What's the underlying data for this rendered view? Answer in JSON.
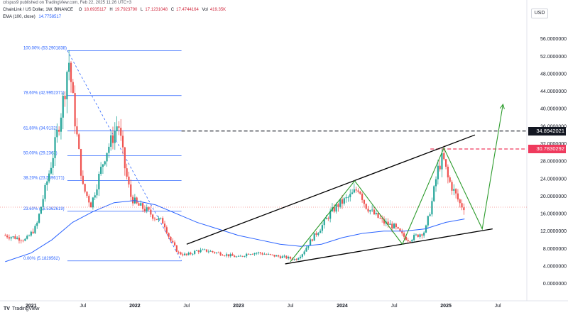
{
  "header": {
    "published": "crispus9 published on TradingView.com, Feb 22, 2025 11:26 UTC+3",
    "symbol": "ChainLink / US Dollar, 1W, BINANCE",
    "ohlc": [
      {
        "label": "O",
        "value": "18.6935117"
      },
      {
        "label": "H",
        "value": "19.7923790"
      },
      {
        "label": "L",
        "value": "17.1231048"
      },
      {
        "label": "C",
        "value": "17.4744164"
      },
      {
        "label": "Vol",
        "value": "419.35K"
      }
    ],
    "ema_label": "EMA (100, close)",
    "ema_value": "14.7758517"
  },
  "currency_button": "USD",
  "price_tags": {
    "resistance": "34.8942021",
    "current_high": "30.7830292"
  },
  "brand": {
    "logo": "TV",
    "name": "TradingView"
  },
  "colors": {
    "up": "#26a69a",
    "down": "#ef5350",
    "ema": "#2962ff",
    "fib": "#2962ff",
    "projection": "#2e9c2e",
    "channel": "#000000",
    "tag_dark": "#131722",
    "tag_red": "#ef3a5d"
  },
  "chart_data": {
    "type": "candlestick",
    "title": "ChainLink / US Dollar, 1W, BINANCE",
    "xlabel": "",
    "ylabel": "",
    "grid": false,
    "ylim": [
      -2,
      60
    ],
    "x_ticks": [
      {
        "label": "2021",
        "bold": true
      },
      {
        "label": "Jul",
        "bold": false
      },
      {
        "label": "2022",
        "bold": true
      },
      {
        "label": "Jul",
        "bold": false
      },
      {
        "label": "2023",
        "bold": true
      },
      {
        "label": "Jul",
        "bold": false
      },
      {
        "label": "2024",
        "bold": true
      },
      {
        "label": "Jul",
        "bold": false
      },
      {
        "label": "2025",
        "bold": true
      },
      {
        "label": "Jul",
        "bold": false
      }
    ],
    "y_ticks": [
      "56.0000000",
      "52.0000000",
      "48.0000000",
      "44.0000000",
      "40.0000000",
      "36.0000000",
      "32.0000000",
      "28.0000000",
      "24.0000000",
      "20.0000000",
      "16.0000000",
      "12.0000000",
      "8.0000000",
      "4.0000000",
      "0.0000000"
    ],
    "y_tick_values": [
      56,
      52,
      48,
      44,
      40,
      36,
      32,
      28,
      24,
      20,
      16,
      12,
      8,
      4,
      0
    ],
    "price_path": [
      [
        2020.75,
        11
      ],
      [
        2020.95,
        10
      ],
      [
        2021.05,
        13
      ],
      [
        2021.12,
        20
      ],
      [
        2021.2,
        28
      ],
      [
        2021.28,
        38
      ],
      [
        2021.33,
        45
      ],
      [
        2021.36,
        52
      ],
      [
        2021.42,
        38
      ],
      [
        2021.5,
        22
      ],
      [
        2021.58,
        18
      ],
      [
        2021.66,
        25
      ],
      [
        2021.72,
        30
      ],
      [
        2021.78,
        33
      ],
      [
        2021.84,
        37
      ],
      [
        2021.9,
        27
      ],
      [
        2021.96,
        20
      ],
      [
        2022.02,
        18
      ],
      [
        2022.1,
        17
      ],
      [
        2022.2,
        15
      ],
      [
        2022.28,
        14
      ],
      [
        2022.34,
        10
      ],
      [
        2022.42,
        7
      ],
      [
        2022.5,
        6.5
      ],
      [
        2022.6,
        7.5
      ],
      [
        2022.7,
        7.5
      ],
      [
        2022.8,
        7
      ],
      [
        2022.9,
        6.5
      ],
      [
        2023.0,
        6
      ],
      [
        2023.1,
        7
      ],
      [
        2023.2,
        7
      ],
      [
        2023.3,
        6.5
      ],
      [
        2023.45,
        6
      ],
      [
        2023.55,
        5.5
      ],
      [
        2023.62,
        7
      ],
      [
        2023.7,
        10
      ],
      [
        2023.8,
        13
      ],
      [
        2023.88,
        16
      ],
      [
        2023.96,
        18
      ],
      [
        2024.08,
        20
      ],
      [
        2024.16,
        22
      ],
      [
        2024.22,
        18
      ],
      [
        2024.3,
        16
      ],
      [
        2024.4,
        14
      ],
      [
        2024.5,
        13
      ],
      [
        2024.58,
        11
      ],
      [
        2024.64,
        10
      ],
      [
        2024.72,
        11
      ],
      [
        2024.8,
        12
      ],
      [
        2024.86,
        18
      ],
      [
        2024.92,
        26
      ],
      [
        2024.97,
        29
      ],
      [
        2025.02,
        24
      ],
      [
        2025.08,
        21
      ],
      [
        2025.14,
        18
      ],
      [
        2025.18,
        17.5
      ]
    ],
    "ema_100": [
      [
        2020.75,
        5
      ],
      [
        2021.0,
        7
      ],
      [
        2021.2,
        10
      ],
      [
        2021.4,
        14
      ],
      [
        2021.6,
        16.5
      ],
      [
        2021.8,
        18.5
      ],
      [
        2022.0,
        19
      ],
      [
        2022.2,
        18
      ],
      [
        2022.4,
        16
      ],
      [
        2022.6,
        14
      ],
      [
        2022.8,
        12.5
      ],
      [
        2023.0,
        11
      ],
      [
        2023.2,
        10
      ],
      [
        2023.4,
        9
      ],
      [
        2023.6,
        8.5
      ],
      [
        2023.8,
        9
      ],
      [
        2024.0,
        10.5
      ],
      [
        2024.2,
        11.5
      ],
      [
        2024.4,
        12
      ],
      [
        2024.6,
        12
      ],
      [
        2024.8,
        12.5
      ],
      [
        2025.0,
        14
      ],
      [
        2025.18,
        14.78
      ]
    ],
    "fibonacci": [
      {
        "level": "100.00%",
        "price": "53.2901838",
        "value": 53.29
      },
      {
        "level": "78.60%",
        "price": "42.9952371",
        "value": 43.0
      },
      {
        "level": "61.80%",
        "price": "34.9132",
        "value": 34.91
      },
      {
        "level": "50.00%",
        "price": "29.2363",
        "value": 29.24
      },
      {
        "level": "38.20%",
        "price": "23.5596171",
        "value": 23.56
      },
      {
        "level": "23.60%",
        "price": "16.5362619",
        "value": 16.54
      },
      {
        "level": "0.00%",
        "price": "5.1829562",
        "value": 5.18
      }
    ],
    "fib_range_x": [
      2021.35,
      2022.45
    ],
    "channel_upper": [
      [
        2022.5,
        9
      ],
      [
        2025.28,
        34
      ]
    ],
    "channel_lower": [
      [
        2023.45,
        4.5
      ],
      [
        2025.45,
        12.5
      ]
    ],
    "projection_path": [
      [
        2023.5,
        5
      ],
      [
        2024.12,
        23.5
      ],
      [
        2024.58,
        9
      ],
      [
        2024.98,
        31
      ],
      [
        2025.35,
        12.5
      ],
      [
        2025.55,
        41
      ]
    ],
    "resistance_level": 34.8942021,
    "resistance_start_x": 2022.45,
    "current_high_level": 30.7830292,
    "current_high_start_x": 2024.85,
    "current_close_level": 17.4744164,
    "candles_note": "weekly OHLC candles; up = teal, down = red"
  }
}
